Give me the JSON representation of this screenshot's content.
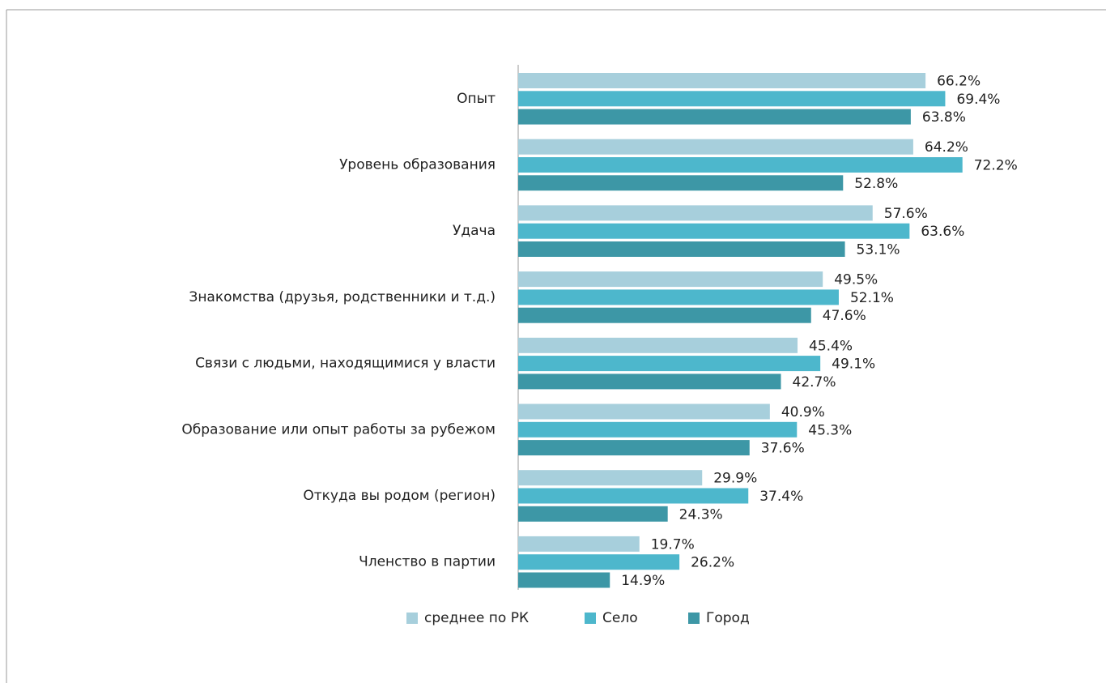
{
  "chart_data": {
    "type": "bar",
    "orientation": "horizontal",
    "categories": [
      "Опыт",
      "Уровень образования",
      "Удача",
      "Знакомства (друзья, родственники и т.д.)",
      "Связи с людьми, находящимися у власти",
      "Образование или опыт работы за рубежом",
      "Откуда вы родом (регион)",
      "Членство в партии"
    ],
    "series": [
      {
        "name": "среднее по РК",
        "color": "#a7cfdc",
        "values": [
          66.2,
          64.2,
          57.6,
          49.5,
          45.4,
          40.9,
          29.9,
          19.7
        ],
        "value_labels": [
          "66.2%",
          "64.2%",
          "57.6%",
          "49.5%",
          "45.4%",
          "40.9%",
          "29.9%",
          "19.7%"
        ]
      },
      {
        "name": "Село",
        "color": "#4db7cc",
        "values": [
          69.4,
          72.2,
          63.6,
          52.1,
          49.1,
          45.3,
          37.4,
          26.2
        ],
        "value_labels": [
          "69.4%",
          "72.2%",
          "63.6%",
          "52.1%",
          "49.1%",
          "45.3%",
          "37.4%",
          "26.2%"
        ]
      },
      {
        "name": "Город",
        "color": "#3d97a6",
        "values": [
          63.8,
          52.8,
          53.1,
          47.6,
          42.7,
          37.6,
          24.3,
          14.9
        ],
        "value_labels": [
          "63.8%",
          "52.8%",
          "53.1%",
          "47.6%",
          "42.7%",
          "37.6%",
          "24.3%",
          "14.9%"
        ]
      }
    ],
    "xlim": [
      0,
      80
    ],
    "legend": "bottom"
  }
}
